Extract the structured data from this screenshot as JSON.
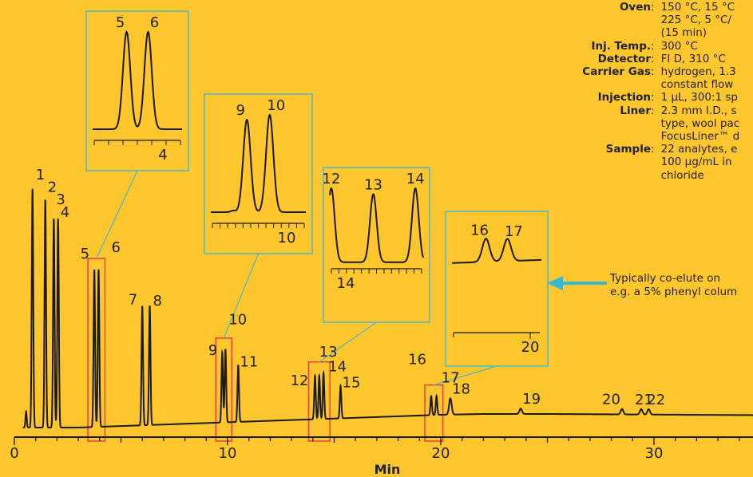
{
  "colors": {
    "background": "#FFC62E",
    "trace": "#1a1a1a",
    "inset_border": "#4FB8C4",
    "zoom_box": "#E8413A",
    "arrow": "#36B9D0"
  },
  "conditions": [
    {
      "label": "Oven",
      "value": "150 °C, 15 °C\n225 °C, 5 °C/\n(15 min)"
    },
    {
      "label": "Inj. Temp.",
      "value": "300 °C"
    },
    {
      "label": "Detector",
      "value": "FI D, 310 °C"
    },
    {
      "label": "Carrier Gas",
      "value": "hydrogen, 1.3\nconstant flow"
    },
    {
      "label": "Injection",
      "value": "1 µL, 300:1 sp"
    },
    {
      "label": "Liner",
      "value": "2.3 mm I.D., s\ntype, wool pac\nFocusLiner™ d"
    },
    {
      "label": "Sample",
      "value": "22 analytes, e\n100 µg/mL in\nchloride"
    }
  ],
  "note": "Typically co-elute on\ne.g. a 5% phenyl colum",
  "chart_data": {
    "type": "line",
    "xlabel": "Min",
    "xlim": [
      0,
      35
    ],
    "x_ticks": [
      0,
      10,
      20,
      30
    ],
    "peaks": [
      {
        "label": "1",
        "rt": 0.85,
        "height": 0.88
      },
      {
        "label": "2",
        "rt": 1.45,
        "height": 0.84
      },
      {
        "label": "3",
        "rt": 1.85,
        "height": 0.77
      },
      {
        "label": "4",
        "rt": 2.05,
        "height": 0.77
      },
      {
        "label": "5",
        "rt": 3.75,
        "height": 0.58
      },
      {
        "label": "6",
        "rt": 3.95,
        "height": 0.58
      },
      {
        "label": "7",
        "rt": 6.0,
        "height": 0.44
      },
      {
        "label": "8",
        "rt": 6.35,
        "height": 0.44
      },
      {
        "label": "9",
        "rt": 9.75,
        "height": 0.26
      },
      {
        "label": "10",
        "rt": 9.9,
        "height": 0.27
      },
      {
        "label": "11",
        "rt": 10.5,
        "height": 0.21
      },
      {
        "label": "12",
        "rt": 14.1,
        "height": 0.16
      },
      {
        "label": "13",
        "rt": 14.3,
        "height": 0.16
      },
      {
        "label": "14",
        "rt": 14.5,
        "height": 0.17
      },
      {
        "label": "15",
        "rt": 15.3,
        "height": 0.12
      },
      {
        "label": "16",
        "rt": 19.55,
        "height": 0.07
      },
      {
        "label": "17",
        "rt": 19.8,
        "height": 0.07
      },
      {
        "label": "18",
        "rt": 20.45,
        "height": 0.06
      },
      {
        "label": "19",
        "rt": 23.75,
        "height": 0.02
      },
      {
        "label": "20",
        "rt": 28.5,
        "height": 0.02
      },
      {
        "label": "21",
        "rt": 29.4,
        "height": 0.02
      },
      {
        "label": "22",
        "rt": 29.75,
        "height": 0.02
      }
    ],
    "insets": [
      {
        "peaks": [
          "5",
          "6"
        ],
        "tick_label": "4"
      },
      {
        "peaks": [
          "9",
          "10"
        ],
        "tick_label": "10"
      },
      {
        "peaks": [
          "12",
          "13",
          "14"
        ],
        "tick_label": "14"
      },
      {
        "peaks": [
          "16",
          "17"
        ],
        "tick_label": "20"
      }
    ]
  }
}
